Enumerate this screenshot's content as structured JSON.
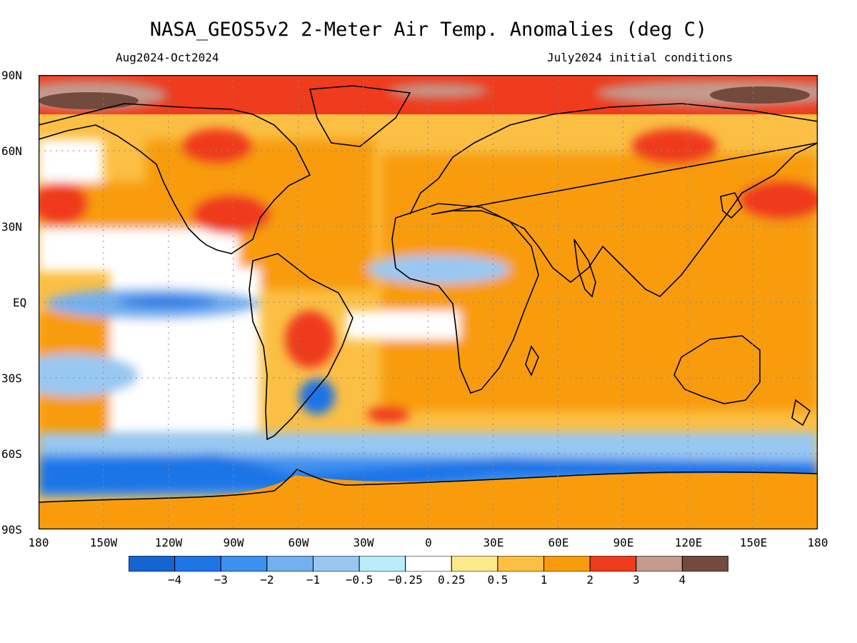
{
  "header": {
    "title": "NASA_GEOS5v2 2-Meter Air Temp. Anomalies (deg C)",
    "period": "Aug2024-Oct2024",
    "init": "July2024 initial conditions"
  },
  "axes": {
    "lat_ticks": [
      "90N",
      "60N",
      "30N",
      "EQ",
      "30S",
      "60S",
      "90S"
    ],
    "lon_ticks": [
      "180",
      "150W",
      "120W",
      "90W",
      "60W",
      "30W",
      "0",
      "30E",
      "60E",
      "90E",
      "120E",
      "150E",
      "180"
    ]
  },
  "legend": {
    "colors": [
      "#1565d0",
      "#1f75e6",
      "#3c90f0",
      "#73b0ef",
      "#98c8f2",
      "#b8ecf8",
      "#ffffff",
      "#fde98a",
      "#fbbf44",
      "#f89c0e",
      "#ef3b1e",
      "#c39a8e",
      "#724a3e"
    ],
    "labels": [
      "-4",
      "-3",
      "-2",
      "-1",
      "-0.5",
      "-0.25",
      "0.25",
      "0.5",
      "1",
      "2",
      "3",
      "4"
    ]
  },
  "chart_data": {
    "type": "heatmap",
    "title": "NASA_GEOS5v2 2-Meter Air Temp. Anomalies (deg C)",
    "xlabel": "",
    "ylabel": "",
    "xlim": [
      -180,
      180
    ],
    "ylim": [
      -90,
      90
    ],
    "units": "deg C",
    "levels": [
      -4,
      -3,
      -2,
      -1,
      -0.5,
      -0.25,
      0.25,
      0.5,
      1,
      2,
      3,
      4
    ],
    "grid": true,
    "regions": [
      {
        "lon": [
          -180,
          180
        ],
        "lat": [
          -90,
          -70
        ],
        "anomaly": 2
      },
      {
        "lon": [
          -180,
          180
        ],
        "lat": [
          -70,
          -55
        ],
        "anomaly": -2
      },
      {
        "lon": [
          -180,
          -80
        ],
        "lat": [
          -5,
          5
        ],
        "anomaly": -1
      },
      {
        "lon": [
          -180,
          180
        ],
        "lat": [
          70,
          90
        ],
        "anomaly": 3
      },
      {
        "lon": [
          -150,
          -20
        ],
        "lat": [
          75,
          88
        ],
        "anomaly": 4
      },
      {
        "lon": [
          60,
          180
        ],
        "lat": [
          78,
          88
        ],
        "anomaly": 4
      },
      {
        "lon": [
          -180,
          -120
        ],
        "lat": [
          25,
          45
        ],
        "anomaly": 2
      },
      {
        "lon": [
          150,
          180
        ],
        "lat": [
          25,
          45
        ],
        "anomaly": 2
      },
      {
        "lon": [
          -120,
          -75
        ],
        "lat": [
          25,
          45
        ],
        "anomaly": 2
      },
      {
        "lon": [
          -10,
          60
        ],
        "lat": [
          5,
          20
        ],
        "anomaly": -1
      },
      {
        "lon": [
          -60,
          -40
        ],
        "lat": [
          -20,
          -5
        ],
        "anomaly": 3
      },
      {
        "lon": [
          -55,
          -45
        ],
        "lat": [
          -40,
          -30
        ],
        "anomaly": -2
      },
      {
        "lon": [
          -120,
          -75
        ],
        "lat": [
          -50,
          -5
        ],
        "anomaly": 0.25
      },
      {
        "lon": [
          -30,
          10
        ],
        "lat": [
          -5,
          5
        ],
        "anomaly": 0.25
      },
      {
        "lon": [
          0,
          180
        ],
        "lat": [
          -45,
          70
        ],
        "anomaly": 1
      }
    ]
  }
}
